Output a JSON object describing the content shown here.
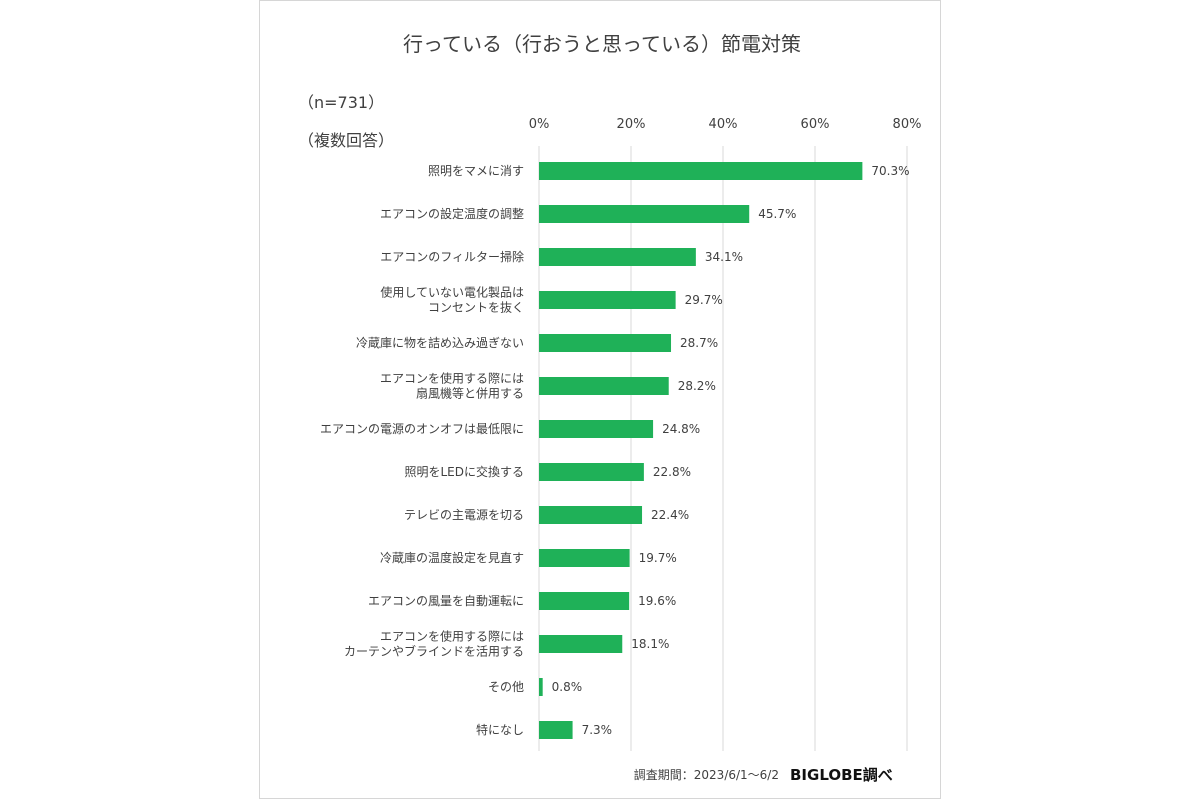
{
  "chart_data": {
    "type": "bar",
    "orientation": "horizontal",
    "title": "行っている（行おうと思っている）節電対策",
    "sample_note": "（n=731）",
    "answer_note": "（複数回答）",
    "xlim": [
      0,
      80
    ],
    "x_ticks": [
      "0%",
      "20%",
      "40%",
      "60%",
      "80%"
    ],
    "grid": true,
    "bar_color": "#1fb158",
    "categories": [
      [
        "照明をマメに消す"
      ],
      [
        "エアコンの設定温度の調整"
      ],
      [
        "エアコンのフィルター掃除"
      ],
      [
        "使用していない電化製品は",
        "コンセントを抜く"
      ],
      [
        "冷蔵庫に物を詰め込み過ぎない"
      ],
      [
        "エアコンを使用する際には",
        "扇風機等と併用する"
      ],
      [
        "エアコンの電源のオンオフは最低限に"
      ],
      [
        "照明をLEDに交換する"
      ],
      [
        "テレビの主電源を切る"
      ],
      [
        "冷蔵庫の温度設定を見直す"
      ],
      [
        "エアコンの風量を自動運転に"
      ],
      [
        "エアコンを使用する際には",
        "カーテンやブラインドを活用する"
      ],
      [
        "その他"
      ],
      [
        "特になし"
      ]
    ],
    "values": [
      70.3,
      45.7,
      34.1,
      29.7,
      28.7,
      28.2,
      24.8,
      22.8,
      22.4,
      19.7,
      19.6,
      18.1,
      0.8,
      7.3
    ],
    "value_labels": [
      "70.3%",
      "45.7%",
      "34.1%",
      "29.7%",
      "28.7%",
      "28.2%",
      "24.8%",
      "22.8%",
      "22.4%",
      "19.7%",
      "19.6%",
      "18.1%",
      "0.8%",
      "7.3%"
    ],
    "footer": "調査期間：2023/6/1～6/2",
    "source": "BIGLOBE調べ"
  }
}
